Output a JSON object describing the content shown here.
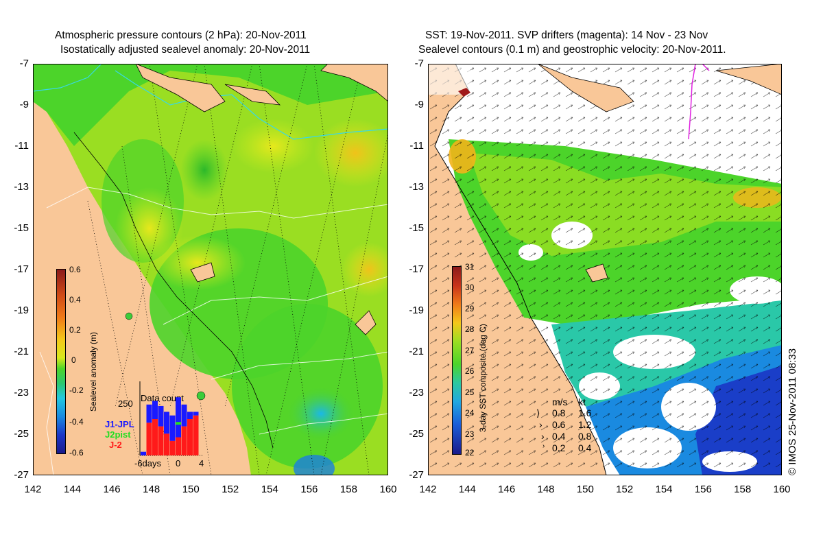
{
  "left_panel": {
    "title_line1": "Atmospheric pressure contours (2 hPa): 20-Nov-2011",
    "title_line2": "Isostatically adjusted sealevel anomaly: 20-Nov-2011",
    "colorbar": {
      "label": "Sealevel anomaly (m)",
      "ticks": [
        "0.6",
        "0.4",
        "0.2",
        "0",
        "-0.2",
        "-0.4",
        "-0.6"
      ]
    },
    "data_count": {
      "title": "Data count",
      "ymax_label": "250",
      "x_labels": [
        "-6days",
        "0",
        "4"
      ],
      "legend": [
        {
          "name": "J1-JPL",
          "color": "#1a1aff"
        },
        {
          "name": "J2pist",
          "color": "#22dd22"
        },
        {
          "name": "J-2",
          "color": "#ff1a1a"
        }
      ]
    }
  },
  "right_panel": {
    "title_line1": "SST: 19-Nov-2011. SVP drifters (magenta): 14 Nov - 23 Nov",
    "title_line2": "Sealevel contours (0.1 m) and geostrophic velocity: 20-Nov-2011.",
    "colorbar": {
      "label": "3-day SST composite (deg C)",
      "ticks": [
        "31",
        "30",
        "29",
        "28",
        "27",
        "26",
        "25",
        "24",
        "23",
        "22"
      ]
    },
    "velocity_legend": {
      "header_ms": "m/s",
      "header_kt": "kt",
      "rows": [
        {
          "ms": "0.8",
          "kt": "1.6"
        },
        {
          "ms": "0.6",
          "kt": "1.2"
        },
        {
          "ms": "0.4",
          "kt": "0.8"
        },
        {
          "ms": "0.2",
          "kt": "0.4"
        }
      ]
    }
  },
  "axes": {
    "y_labels": [
      "-7",
      "-9",
      "-11",
      "-13",
      "-15",
      "-17",
      "-19",
      "-21",
      "-23",
      "-25",
      "-27"
    ],
    "x_labels": [
      "142",
      "144",
      "146",
      "148",
      "150",
      "152",
      "154",
      "156",
      "158",
      "160"
    ]
  },
  "copyright": "© IMOS 25-Nov-2011 08:33",
  "colors": {
    "land": "#f9c798",
    "sea_green": "#4cd42a",
    "sea_yellow": "#c9ea1e",
    "sea_orange": "#f2cf1a",
    "sea_blue": "#1a8ae0",
    "white_cloud": "#ffffff"
  }
}
